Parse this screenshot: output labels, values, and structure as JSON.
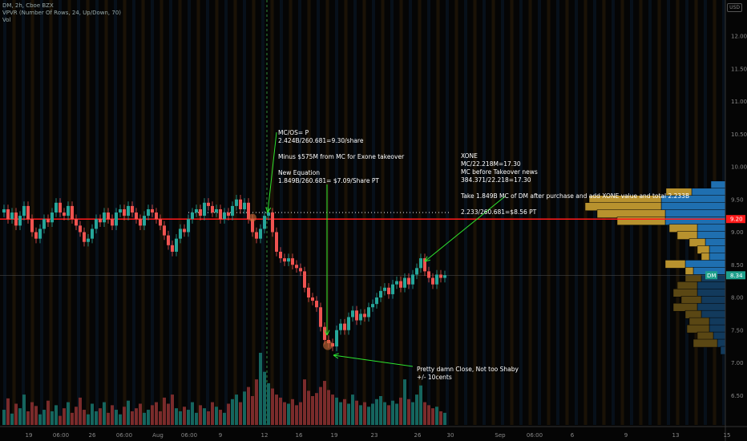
{
  "legend": {
    "symbol_line": "DM, 2h, Cboe BZX",
    "vpvr_line": "VPVR (Number Of Rows, 24, Up/Down, 70)",
    "vol_line": "Vol"
  },
  "currency": "USD",
  "colors": {
    "up": "#26a69a",
    "down": "#ef5350",
    "vol_up": "#15655e",
    "vol_down": "#7a2b2b",
    "vpvr_up": "#1f6fb0",
    "vpvr_down": "#b8922e",
    "vpvr_up_low": "#123a5c",
    "vpvr_down_low": "#5a4714",
    "annotation": "#2ee52e",
    "hline": "#ff1a1a"
  },
  "annotations": [
    {
      "lines": [
        "MC/OS= P",
        "2.424B/260.681=9.30/share",
        "",
        "Minus $575M from MC for Exone takeover",
        "",
        "New Equation",
        "1.849B/260.681= $7.09/Share PT"
      ]
    },
    {
      "lines": [
        "XONE",
        "MC/22.218M=17.30",
        "MC before Takeover news",
        "384.371/22.218=17.30",
        "",
        "Take 1.849B MC of DM after purchase and add XONE value and total 2.233B",
        "",
        "2.233/260.681=$8.56 PT"
      ]
    },
    {
      "lines": [
        "Pretty damn Close, Not too Shaby",
        "+/- 10cents"
      ]
    }
  ],
  "chart_data": {
    "type": "candlestick",
    "title": "",
    "price_ticks": [
      "12.00",
      "11.50",
      "11.00",
      "10.50",
      "10.00",
      "9.50",
      "9.00",
      "8.50",
      "8.00",
      "7.50",
      "7.00",
      "6.50"
    ],
    "ylim": [
      6.3,
      12.4
    ],
    "time_ticks": [
      "19",
      "06:00",
      "26",
      "06:00",
      "Aug",
      "06:00",
      "9",
      "12",
      "16",
      "19",
      "23",
      "26",
      "30",
      "Sep",
      "06:00",
      "6",
      "9",
      "13",
      "15"
    ],
    "horizontal_line": {
      "price": 9.2,
      "label": "9.20"
    },
    "dotted_line": {
      "price": 9.3
    },
    "last_price": {
      "price": 8.34,
      "label": "8.34",
      "symbol": "DM"
    },
    "closes": [
      9.35,
      9.2,
      9.3,
      9.1,
      9.25,
      9.4,
      9.2,
      9.0,
      8.9,
      9.05,
      9.2,
      9.15,
      9.3,
      9.45,
      9.3,
      9.25,
      9.4,
      9.2,
      9.1,
      9.0,
      8.85,
      8.9,
      9.05,
      9.2,
      9.15,
      9.3,
      9.2,
      9.1,
      9.3,
      9.35,
      9.25,
      9.4,
      9.3,
      9.2,
      9.1,
      9.25,
      9.35,
      9.3,
      9.2,
      9.1,
      8.95,
      8.8,
      8.7,
      8.9,
      9.05,
      9.0,
      9.2,
      9.3,
      9.35,
      9.25,
      9.45,
      9.4,
      9.3,
      9.35,
      9.2,
      9.3,
      9.25,
      9.4,
      9.5,
      9.35,
      9.45,
      9.2,
      9.0,
      8.9,
      9.05,
      9.25,
      9.3,
      9.0,
      8.7,
      8.6,
      8.55,
      8.6,
      8.5,
      8.45,
      8.4,
      8.15,
      8.0,
      7.95,
      7.85,
      7.55,
      7.35,
      7.3,
      7.25,
      7.5,
      7.6,
      7.5,
      7.7,
      7.8,
      7.65,
      7.75,
      7.7,
      7.85,
      7.9,
      8.0,
      8.1,
      8.15,
      8.05,
      8.2,
      8.25,
      8.15,
      8.3,
      8.2,
      8.35,
      8.45,
      8.6,
      8.4,
      8.3,
      8.2,
      8.35,
      8.3,
      8.34
    ],
    "first_open": 9.3,
    "volume": [
      20,
      35,
      15,
      28,
      22,
      40,
      18,
      30,
      25,
      14,
      20,
      32,
      18,
      26,
      12,
      22,
      30,
      16,
      24,
      36,
      20,
      14,
      28,
      18,
      22,
      30,
      16,
      26,
      20,
      14,
      24,
      32,
      18,
      22,
      28,
      16,
      20,
      26,
      30,
      18,
      36,
      28,
      40,
      22,
      18,
      24,
      20,
      30,
      16,
      26,
      22,
      18,
      30,
      24,
      20,
      16,
      28,
      34,
      40,
      30,
      44,
      50,
      38,
      60,
      95,
      70,
      55,
      48,
      40,
      36,
      30,
      28,
      34,
      26,
      30,
      60,
      45,
      38,
      42,
      50,
      58,
      46,
      40,
      36,
      30,
      34,
      28,
      40,
      32,
      26,
      30,
      24,
      28,
      34,
      38,
      30,
      26,
      32,
      28,
      36,
      60,
      34,
      30,
      40,
      52,
      30,
      26,
      22,
      24,
      18,
      16
    ],
    "vpvr_rows": [
      {
        "price": 9.72,
        "up": 18,
        "down": 0
      },
      {
        "price": 9.61,
        "up": 42,
        "down": 32
      },
      {
        "price": 9.5,
        "up": 80,
        "down": 90
      },
      {
        "price": 9.39,
        "up": 80,
        "down": 95
      },
      {
        "price": 9.28,
        "up": 75,
        "down": 85
      },
      {
        "price": 9.17,
        "up": 75,
        "down": 60
      },
      {
        "price": 9.06,
        "up": 35,
        "down": 35
      },
      {
        "price": 8.95,
        "up": 35,
        "down": 25
      },
      {
        "price": 8.84,
        "up": 25,
        "down": 20
      },
      {
        "price": 8.73,
        "up": 20,
        "down": 15
      },
      {
        "price": 8.62,
        "up": 20,
        "down": 10
      },
      {
        "price": 8.51,
        "up": 50,
        "down": 25
      },
      {
        "price": 8.4,
        "up": 40,
        "down": 10
      },
      {
        "price": 8.29,
        "up": 30,
        "down": 20
      },
      {
        "price": 8.18,
        "up": 35,
        "down": 25
      },
      {
        "price": 8.07,
        "up": 35,
        "down": 30
      },
      {
        "price": 7.96,
        "up": 30,
        "down": 25
      },
      {
        "price": 7.85,
        "up": 35,
        "down": 30
      },
      {
        "price": 7.74,
        "up": 30,
        "down": 20
      },
      {
        "price": 7.63,
        "up": 20,
        "down": 25
      },
      {
        "price": 7.52,
        "up": 20,
        "down": 28
      },
      {
        "price": 7.41,
        "up": 15,
        "down": 20
      },
      {
        "price": 7.3,
        "up": 10,
        "down": 30
      },
      {
        "price": 7.19,
        "up": 6,
        "down": 0
      }
    ]
  }
}
